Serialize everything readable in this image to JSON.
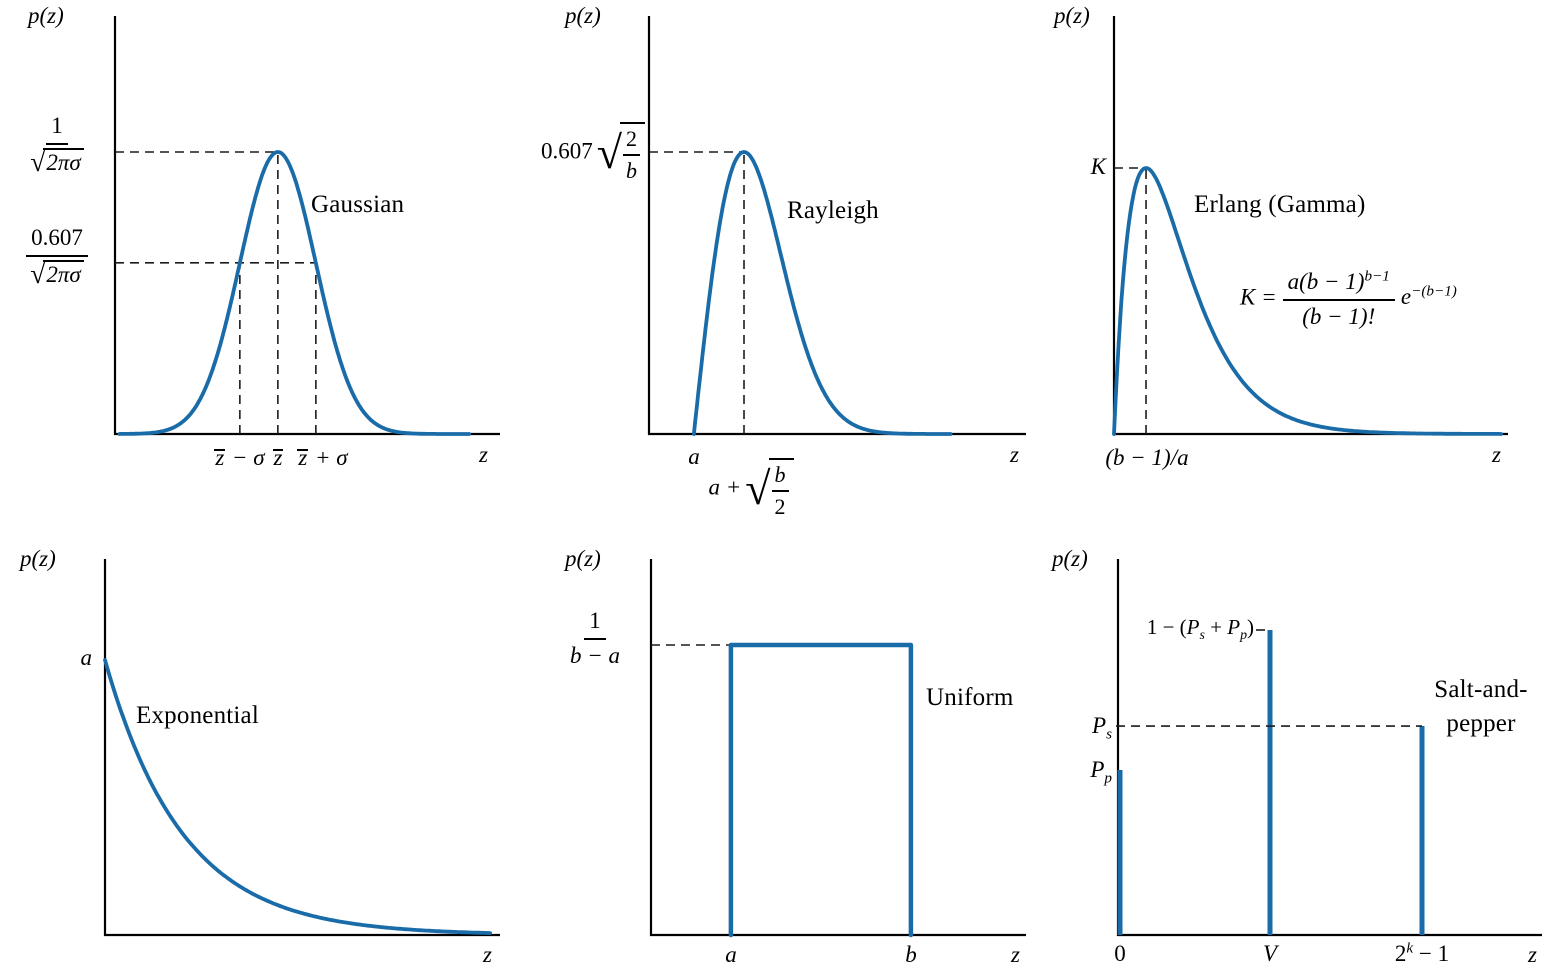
{
  "figure": {
    "curve_color": "#1a6ca8",
    "guide_color": "#1c1c1c",
    "axis_color": "#000000",
    "sqrt_sign": "√"
  },
  "chart_data": [
    {
      "type": "line",
      "name": "gaussian",
      "title": "Gaussian",
      "labels": {
        "y_axis": "p(z)",
        "x_axis": "z",
        "peak_num": "1",
        "peak_den_rad": "2πσ",
        "level_num": "0.607",
        "level_den_rad": "2πσ",
        "title": "Gaussian",
        "tick_mean_minus_base": "z",
        "tick_mean_minus_rest": " − σ",
        "tick_mean_base": "z",
        "tick_mean_rest": "",
        "tick_mean_plus_base": "z",
        "tick_mean_plus_rest": " + σ"
      },
      "render": {
        "curve": "gaussian",
        "mean": 0.423,
        "sigma": 0.0987,
        "level": 0.607,
        "draw_start": 0.012,
        "draw_end": 0.92
      }
    },
    {
      "type": "line",
      "name": "rayleigh",
      "title": "Rayleigh",
      "labels": {
        "y_axis": "p(z)",
        "x_axis": "z",
        "peak_coef": "0.607",
        "peak_rad_num": "2",
        "peak_rad_den": "b",
        "title": "Rayleigh",
        "tick_a": "a",
        "peak_pos_prefix": "a +",
        "peak_pos_rad_num": "b",
        "peak_pos_rad_den": "2"
      },
      "render": {
        "curve": "rayleigh",
        "start": 0.119,
        "mode": 0.252,
        "draw_end": 0.8
      }
    },
    {
      "type": "line",
      "name": "erlang",
      "title": "Erlang (Gamma)",
      "labels": {
        "y_axis": "p(z)",
        "x_axis": "z",
        "peak": "K",
        "tick_mode": "(b − 1)/a",
        "title": "Erlang (Gamma)",
        "eq_lhs": "K =",
        "eq_num_base": "a(b − 1)",
        "eq_num_sup": "b−1",
        "eq_den": "(b − 1)!",
        "eq_tail_base": "e",
        "eq_tail_sup": "−(b−1)"
      },
      "render": {
        "curve": "erlang",
        "mode": 0.0815,
        "draw_end": 0.985
      }
    },
    {
      "type": "line",
      "name": "exponential",
      "title": "Exponential",
      "labels": {
        "y_axis": "p(z)",
        "x_axis": "z",
        "intercept": "a",
        "title": "Exponential"
      },
      "render": {
        "curve": "exponential",
        "decay": 0.197,
        "draw_end": 0.975
      }
    },
    {
      "type": "line",
      "name": "uniform",
      "title": "Uniform",
      "labels": {
        "y_axis": "p(z)",
        "x_axis": "z",
        "height_num": "1",
        "height_den": "b − a",
        "tick_a": "a",
        "tick_b": "b",
        "title": "Uniform"
      },
      "render": {
        "curve": "uniform",
        "a": 0.213,
        "b": 0.693,
        "height": 1.0
      }
    },
    {
      "type": "impulse",
      "name": "salt-and-pepper",
      "title": "Salt-and-pepper",
      "labels": {
        "y_axis": "p(z)",
        "x_axis": "z",
        "v_pre": "1 − (",
        "v_p1": "P",
        "v_s1": "s",
        "v_mid": " + ",
        "v_p2": "P",
        "v_s2": "p",
        "v_post": ")",
        "ps_base": "P",
        "ps_sub": "s",
        "pp_base": "P",
        "pp_sub": "p",
        "tick_0": "0",
        "tick_v": "V",
        "tick_max_base": "2",
        "tick_max_sup": "k",
        "tick_max_post": " − 1",
        "title": "Salt-and-pepper"
      },
      "render": {
        "curve": "impulses",
        "impulses": [
          {
            "x": 0.0047,
            "h": 0.541
          },
          {
            "x": 0.3585,
            "h": 1.0
          },
          {
            "x": 0.717,
            "h": 0.6852
          }
        ]
      }
    }
  ]
}
